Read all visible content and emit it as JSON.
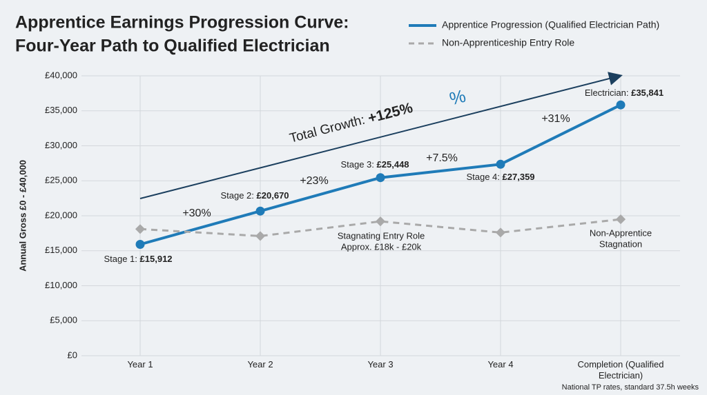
{
  "chart_data": {
    "type": "line",
    "title": [
      "Apprentice Earnings Progression Curve:",
      "Four-Year Path to Qualified Electrician"
    ],
    "y_label": "Annual Gross £0 - £40,000",
    "categories": [
      "Year 1",
      "Year 2",
      "Year 3",
      "Year 4",
      "Completion (Qualified Electrician)"
    ],
    "series": [
      {
        "name": "Apprentice Progression (Qualified Electrician Path)",
        "color": "#1f7bb8",
        "style": "solid",
        "values": [
          15912,
          20670,
          25448,
          27359,
          35841
        ],
        "point_labels": [
          "Stage 1:",
          "Stage 2:",
          "Stage 3:",
          "Stage 4:",
          "Electrician:"
        ],
        "value_labels": [
          "£15,912",
          "£20,670",
          "£25,448",
          "£27,359",
          "£35,841"
        ]
      },
      {
        "name": "Non-Apprenticeship Entry Role",
        "color": "#a9a9a9",
        "style": "dashed",
        "values": [
          18100,
          17100,
          19200,
          17600,
          19500
        ]
      }
    ],
    "growth_labels": [
      "+30%",
      "+23%",
      "+7.5%",
      "+31%"
    ],
    "total_growth": {
      "text": "Total Growth:",
      "value": "+125%",
      "icon": "%"
    },
    "annotations": [
      [
        "Stagnating Entry Role",
        "Approx. £18k - £20k"
      ],
      [
        "Non-Apprentice",
        "Stagnation"
      ]
    ],
    "footnote": "National TP rates, standard 37.5h weeks",
    "ylim": [
      0,
      40000
    ],
    "yticks": [
      {
        "value": 0,
        "label": "£0"
      },
      {
        "value": 5000,
        "label": "£5,000"
      },
      {
        "value": 10000,
        "label": "£10,000"
      },
      {
        "value": 15000,
        "label": "£15,000"
      },
      {
        "value": 20000,
        "label": "£20,000"
      },
      {
        "value": 25000,
        "label": "£25,000"
      },
      {
        "value": 30000,
        "label": "£30,000"
      },
      {
        "value": 35000,
        "label": "£35,000"
      },
      {
        "value": 40000,
        "label": "£40,000"
      }
    ],
    "grid": true,
    "legend": "top-right"
  }
}
